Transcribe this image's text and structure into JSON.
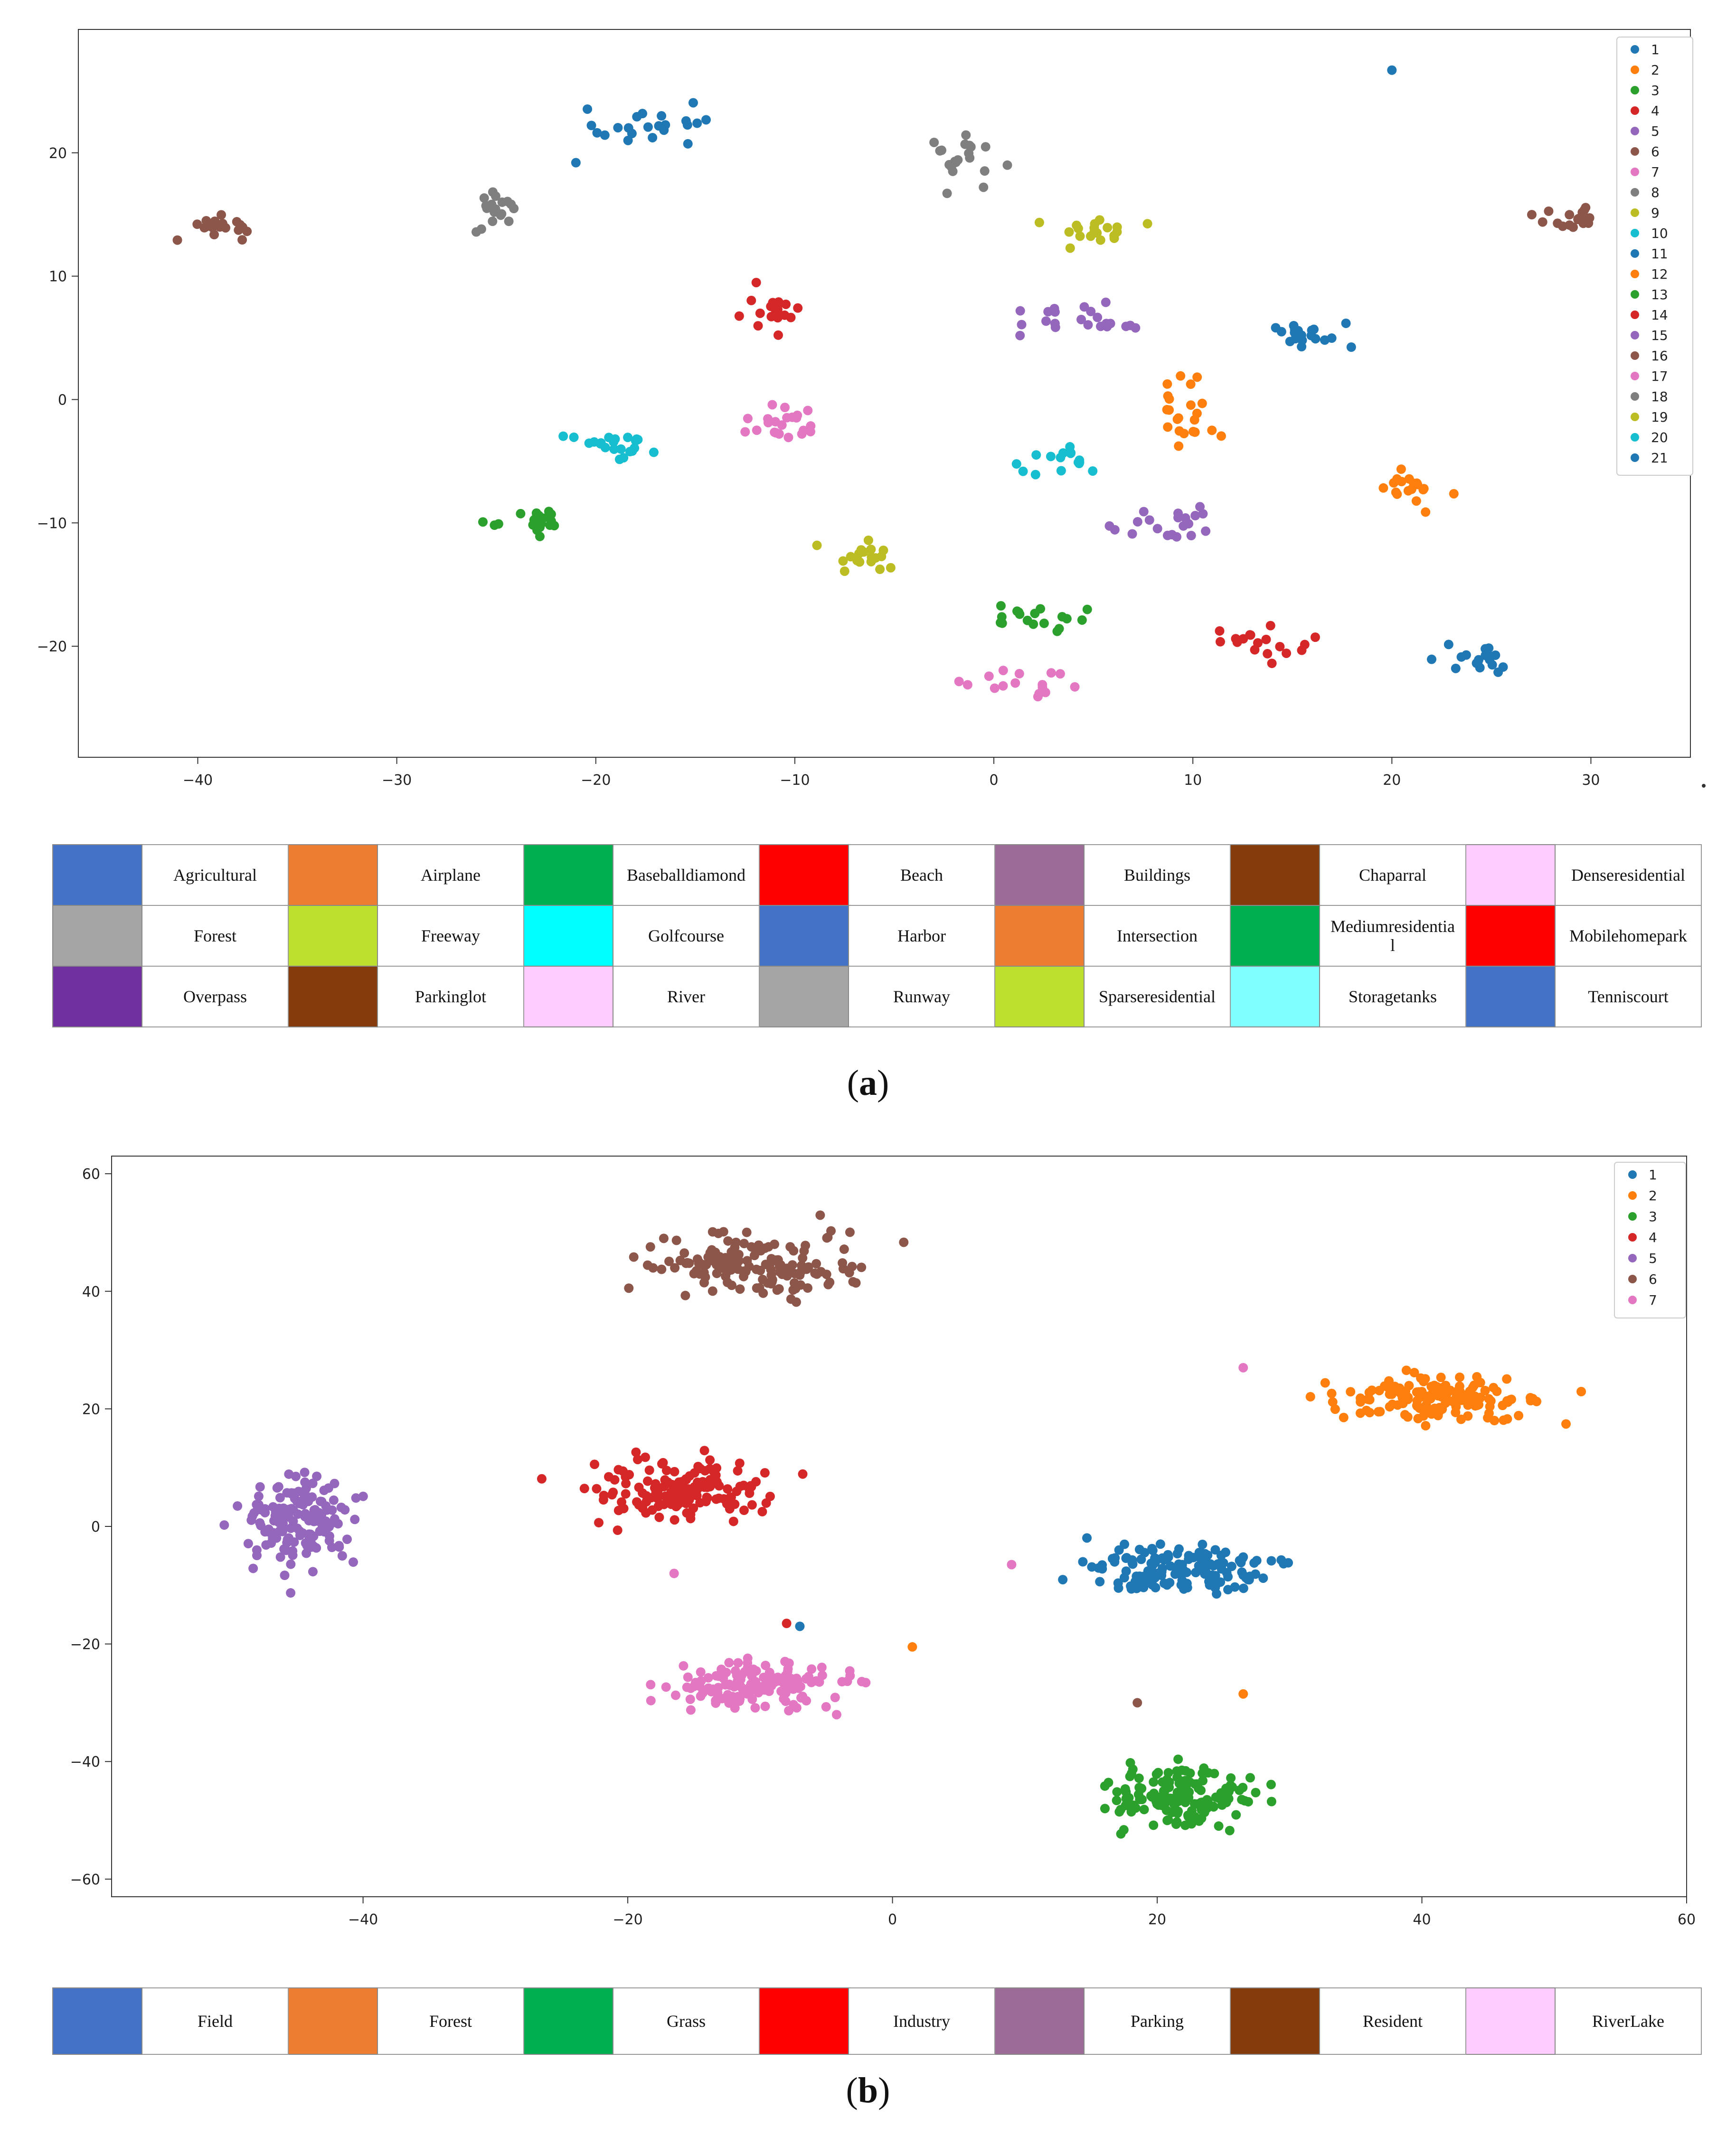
{
  "chart_data": [
    {
      "id": "a",
      "type": "scatter",
      "title": "",
      "xlabel": "",
      "ylabel": "",
      "xlim": [
        -46,
        35
      ],
      "ylim": [
        -29,
        30
      ],
      "x_ticks": [
        -40,
        -30,
        -20,
        -10,
        0,
        10,
        20,
        30
      ],
      "y_ticks": [
        -20,
        -10,
        0,
        10,
        20
      ],
      "legend_position": "top-right",
      "series": [
        {
          "name": "1",
          "color": "#1f77b4",
          "cluster": {
            "cx": -17.0,
            "cy": 22.3,
            "sx": 3.6,
            "sy": 1.6,
            "n": 22
          }
        },
        {
          "name": "2",
          "color": "#ff7f0e",
          "cluster": {
            "cx": 9.8,
            "cy": -0.8,
            "sx": 1.8,
            "sy": 2.4,
            "n": 22
          }
        },
        {
          "name": "3",
          "color": "#2ca02c",
          "cluster": {
            "cx": 1.8,
            "cy": -17.7,
            "sx": 2.8,
            "sy": 1.4,
            "n": 18
          }
        },
        {
          "name": "4",
          "color": "#d62728",
          "cluster": {
            "cx": -11.2,
            "cy": 7.0,
            "sx": 1.6,
            "sy": 1.8,
            "n": 20
          }
        },
        {
          "name": "5",
          "color": "#9467bd",
          "cluster": {
            "cx": 4.2,
            "cy": 6.8,
            "sx": 2.8,
            "sy": 1.4,
            "n": 22
          }
        },
        {
          "name": "6",
          "color": "#8c564b",
          "cluster": {
            "cx": -38.8,
            "cy": 13.9,
            "sx": 1.7,
            "sy": 0.9,
            "n": 20
          }
        },
        {
          "name": "7",
          "color": "#e377c2",
          "cluster": {
            "cx": 1.4,
            "cy": -23.1,
            "sx": 2.6,
            "sy": 1.6,
            "n": 16
          }
        },
        {
          "name": "8",
          "color": "#7f7f7f",
          "cluster": {
            "cx": -1.4,
            "cy": 19.5,
            "sx": 1.7,
            "sy": 2.0,
            "n": 20
          }
        },
        {
          "name": "9",
          "color": "#bcbd22",
          "cluster": {
            "cx": 4.6,
            "cy": 13.5,
            "sx": 2.2,
            "sy": 1.0,
            "n": 20
          }
        },
        {
          "name": "10",
          "color": "#17becf",
          "cluster": {
            "cx": -19.0,
            "cy": -3.5,
            "sx": 2.4,
            "sy": 1.1,
            "n": 22
          }
        },
        {
          "name": "11",
          "color": "#1f77b4",
          "cluster": {
            "cx": 15.8,
            "cy": 5.2,
            "sx": 1.8,
            "sy": 1.3,
            "n": 20
          }
        },
        {
          "name": "12",
          "color": "#ff7f0e",
          "cluster": {
            "cx": 20.8,
            "cy": -7.2,
            "sx": 1.6,
            "sy": 1.3,
            "n": 18
          }
        },
        {
          "name": "13",
          "color": "#2ca02c",
          "cluster": {
            "cx": -22.8,
            "cy": -9.6,
            "sx": 1.8,
            "sy": 1.2,
            "n": 20
          }
        },
        {
          "name": "14",
          "color": "#d62728",
          "cluster": {
            "cx": 13.5,
            "cy": -19.8,
            "sx": 2.2,
            "sy": 1.2,
            "n": 18
          }
        },
        {
          "name": "15",
          "color": "#9467bd",
          "cluster": {
            "cx": 8.8,
            "cy": -10.2,
            "sx": 2.2,
            "sy": 1.2,
            "n": 20
          }
        },
        {
          "name": "16",
          "color": "#8c564b",
          "cluster": {
            "cx": 29.3,
            "cy": 14.8,
            "sx": 1.4,
            "sy": 1.0,
            "n": 18
          }
        },
        {
          "name": "17",
          "color": "#e377c2",
          "cluster": {
            "cx": -10.2,
            "cy": -1.6,
            "sx": 2.2,
            "sy": 1.3,
            "n": 22
          }
        },
        {
          "name": "18",
          "color": "#7f7f7f",
          "cluster": {
            "cx": -25.2,
            "cy": 15.3,
            "sx": 1.5,
            "sy": 1.2,
            "n": 18
          }
        },
        {
          "name": "19",
          "color": "#bcbd22",
          "cluster": {
            "cx": -6.5,
            "cy": -13.0,
            "sx": 1.8,
            "sy": 1.2,
            "n": 18
          }
        },
        {
          "name": "20",
          "color": "#17becf",
          "cluster": {
            "cx": 3.5,
            "cy": -5.0,
            "sx": 2.2,
            "sy": 1.2,
            "n": 16
          }
        },
        {
          "name": "21",
          "color": "#1f77b4",
          "cluster": {
            "cx": 24.0,
            "cy": -20.8,
            "sx": 1.7,
            "sy": 1.2,
            "n": 18
          }
        }
      ],
      "outliers": [
        {
          "x": 20.0,
          "y": 26.7,
          "series": "1"
        },
        {
          "x": -21.0,
          "y": 19.2,
          "series": "1"
        }
      ]
    },
    {
      "id": "b",
      "type": "scatter",
      "title": "",
      "xlabel": "",
      "ylabel": "",
      "xlim": [
        -59,
        60
      ],
      "ylim": [
        -63,
        63
      ],
      "x_ticks": [
        -40,
        -20,
        0,
        20,
        40,
        60
      ],
      "x_tick_labels": [
        "−40",
        "−20",
        "0",
        "20",
        "40",
        "60"
      ],
      "y_ticks": [
        -60,
        -40,
        -20,
        0,
        20,
        40,
        60
      ],
      "legend_position": "top-right",
      "series": [
        {
          "name": "1",
          "color": "#1f77b4",
          "cluster": {
            "cx": 22.0,
            "cy": -7.5,
            "sx": 6.0,
            "sy": 3.5,
            "n": 150
          }
        },
        {
          "name": "2",
          "color": "#ff7f0e",
          "cluster": {
            "cx": 41.0,
            "cy": 21.5,
            "sx": 7.0,
            "sy": 3.5,
            "n": 150
          }
        },
        {
          "name": "3",
          "color": "#2ca02c",
          "cluster": {
            "cx": 21.5,
            "cy": -46.0,
            "sx": 5.0,
            "sy": 4.5,
            "n": 150
          }
        },
        {
          "name": "4",
          "color": "#d62728",
          "cluster": {
            "cx": -15.5,
            "cy": 6.0,
            "sx": 5.5,
            "sy": 4.5,
            "n": 150
          }
        },
        {
          "name": "5",
          "color": "#9467bd",
          "cluster": {
            "cx": -45.0,
            "cy": 1.5,
            "sx": 3.5,
            "sy": 6.5,
            "n": 150
          }
        },
        {
          "name": "6",
          "color": "#8c564b",
          "cluster": {
            "cx": -10.0,
            "cy": 44.5,
            "sx": 7.0,
            "sy": 4.5,
            "n": 150
          }
        },
        {
          "name": "7",
          "color": "#e377c2",
          "cluster": {
            "cx": -10.5,
            "cy": -27.0,
            "sx": 6.0,
            "sy": 3.8,
            "n": 150
          }
        }
      ],
      "outliers": [
        {
          "x": 26.5,
          "y": 27.0,
          "series": "7"
        },
        {
          "x": 9.0,
          "y": -6.5,
          "series": "7"
        },
        {
          "x": -16.5,
          "y": -8.0,
          "series": "7"
        },
        {
          "x": 18.5,
          "y": -30.0,
          "series": "6"
        },
        {
          "x": -8.0,
          "y": -16.5,
          "series": "4"
        },
        {
          "x": 1.5,
          "y": -20.5,
          "series": "2"
        },
        {
          "x": 26.5,
          "y": -28.5,
          "series": "2"
        },
        {
          "x": -7.0,
          "y": -17.0,
          "series": "1"
        }
      ]
    }
  ],
  "keys": {
    "a": [
      [
        {
          "label": "Agricultural",
          "color": "#4472c4"
        },
        {
          "label": "Airplane",
          "color": "#ed7d31"
        },
        {
          "label": "Baseballdiamond",
          "color": "#00b050"
        },
        {
          "label": "Beach",
          "color": "#ff0000"
        },
        {
          "label": "Buildings",
          "color": "#9c6b96"
        },
        {
          "label": "Chaparral",
          "color": "#843c0c"
        },
        {
          "label": "Denseresidential",
          "color": "#ffccff"
        }
      ],
      [
        {
          "label": "Forest",
          "color": "#a5a5a5"
        },
        {
          "label": "Freeway",
          "color": "#bde02e"
        },
        {
          "label": "Golfcourse",
          "color": "#00ffff"
        },
        {
          "label": "Harbor",
          "color": "#4472c4"
        },
        {
          "label": "Intersection",
          "color": "#ed7d31"
        },
        {
          "label": "Mediumresidential",
          "color": "#00b050"
        },
        {
          "label": "Mobilehomepark",
          "color": "#ff0000"
        }
      ],
      [
        {
          "label": "Overpass",
          "color": "#7030a0"
        },
        {
          "label": "Parkinglot",
          "color": "#843c0c"
        },
        {
          "label": "River",
          "color": "#ffccff"
        },
        {
          "label": "Runway",
          "color": "#a5a5a5"
        },
        {
          "label": "Sparseresidential",
          "color": "#bde02e"
        },
        {
          "label": "Storagetanks",
          "color": "#7fffff"
        },
        {
          "label": "Tenniscourt",
          "color": "#4472c4"
        }
      ]
    ],
    "b": [
      [
        {
          "label": "Field",
          "color": "#4472c4"
        },
        {
          "label": "Forest",
          "color": "#ed7d31"
        },
        {
          "label": "Grass",
          "color": "#00b050"
        },
        {
          "label": "Industry",
          "color": "#ff0000"
        },
        {
          "label": "Parking",
          "color": "#9c6b96"
        },
        {
          "label": "Resident",
          "color": "#843c0c"
        },
        {
          "label": "RiverLake",
          "color": "#ffccff"
        }
      ]
    ]
  },
  "captions": {
    "a": {
      "letter": "a"
    },
    "b": {
      "letter": "b"
    }
  },
  "mediumresidential_line1": "Mediumresidentia",
  "mediumresidential_line2": "l"
}
